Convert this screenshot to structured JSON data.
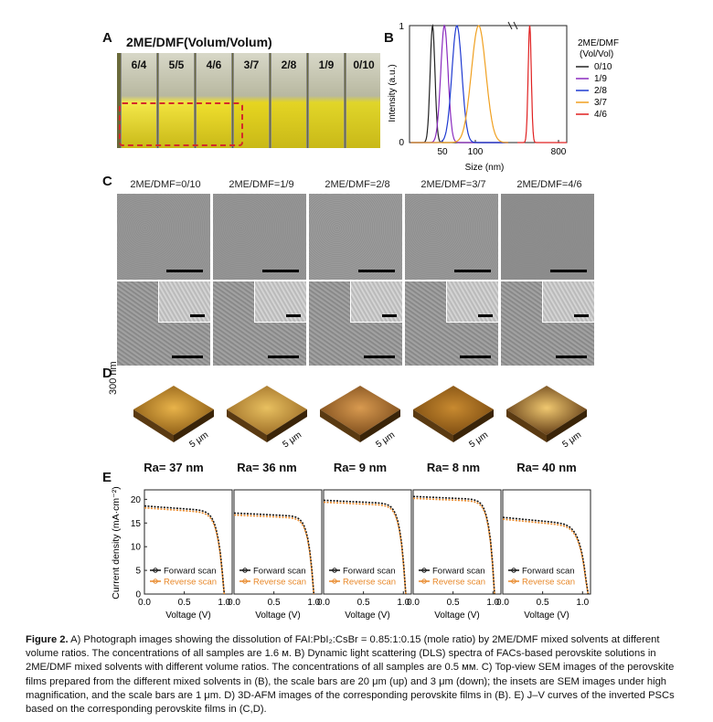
{
  "panel_labels": {
    "a": "A",
    "b": "B",
    "c": "C",
    "d": "D",
    "e": "E"
  },
  "panel_a": {
    "title": "2ME/DMF(Volum/Volum)",
    "vials": [
      "6/4",
      "5/5",
      "4/6",
      "3/7",
      "2/8",
      "1/9",
      "0/10"
    ],
    "highlight_color": "#d42a2a"
  },
  "panel_b": {
    "xlabel": "Size (nm)",
    "ylabel": "Intensity (a.u.)",
    "legend_title_1": "2ME/DMF",
    "legend_title_2": "(Vol/Vol)",
    "y_ticks": [
      "0",
      "1"
    ],
    "x_ticks": [
      "50",
      "100",
      "800"
    ]
  },
  "chart_data": [
    {
      "type": "line",
      "panel": "B",
      "xlabel": "Size (nm)",
      "ylabel": "Intensity (a.u.)",
      "ylim": [
        0,
        1
      ],
      "x_scale": "broken axis",
      "series": [
        {
          "name": "0/10",
          "color": "#222222",
          "peak_x": 35,
          "peak_y": 1
        },
        {
          "name": "1/9",
          "color": "#8a2bbf",
          "peak_x": 53,
          "peak_y": 1
        },
        {
          "name": "2/8",
          "color": "#1f3ad1",
          "peak_x": 72,
          "peak_y": 1
        },
        {
          "name": "3/7",
          "color": "#f0a020",
          "peak_x": 105,
          "peak_y": 1
        },
        {
          "name": "4/6",
          "color": "#e02020",
          "peak_x": 450,
          "peak_y": 1
        }
      ]
    },
    {
      "type": "line",
      "panel": "E",
      "xlabel": "Voltage (V)",
      "ylabel": "Current density (mA·cm⁻²)",
      "xlim": [
        0,
        1.1
      ],
      "ylim": [
        0,
        22
      ],
      "subplots": [
        {
          "voc": 1.0,
          "jsc": 18.2,
          "ff": 0.7
        },
        {
          "voc": 1.0,
          "jsc": 16.7,
          "ff": 0.8
        },
        {
          "voc": 1.03,
          "jsc": 19.4,
          "ff": 0.8
        },
        {
          "voc": 1.02,
          "jsc": 20.2,
          "ff": 0.82
        },
        {
          "voc": 1.07,
          "jsc": 15.8,
          "ff": 0.6
        }
      ],
      "series": [
        {
          "name": "Forward scan",
          "color": "#111111"
        },
        {
          "name": "Reverse scan",
          "color": "#e8892b"
        }
      ]
    }
  ],
  "panel_c": {
    "labels": [
      "2ME/DMF=0/10",
      "2ME/DMF=1/9",
      "2ME/DMF=2/8",
      "2ME/DMF=3/7",
      "2ME/DMF=4/6"
    ]
  },
  "panel_d": {
    "z_label": "300 nm",
    "scale_label": "5 μm",
    "ra": [
      "Ra= 37 nm",
      "Ra= 36 nm",
      "Ra= 9 nm",
      "Ra= 8 nm",
      "Ra= 40 nm"
    ]
  },
  "panel_e": {
    "ylabel": "Current density (mA·cm⁻²)",
    "xlabel": "Voltage (V)",
    "y_ticks": [
      "0",
      "5",
      "10",
      "15",
      "20"
    ],
    "x_ticks": [
      "0.0",
      "0.5",
      "1.0"
    ],
    "legend_forward": "Forward scan",
    "legend_reverse": "Reverse scan"
  },
  "caption": {
    "bold": "Figure 2.",
    "text": " A) Photograph images showing the dissolution of FAI:PbI₂:CsBr = 0.85:1:0.15 (mole ratio) by 2ME/DMF mixed solvents at different volume ratios. The concentrations of all samples are 1.6 м. B) Dynamic light scattering (DLS) spectra of FACs-based perovskite solutions in 2ME/DMF mixed solvents with different volume ratios. The concentrations of all samples are 0.5 мм. C) Top-view SEM images of the perovskite films prepared from the different mixed solvents in (B), the scale bars are 20 μm (up) and 3 μm (down); the insets are SEM images under high magnification, and the scale bars are 1 μm. D) 3D-AFM images of the corresponding perovskite films in (B). E) J–V curves of the inverted PSCs based on the corresponding perovskite films in (C,D)."
  }
}
